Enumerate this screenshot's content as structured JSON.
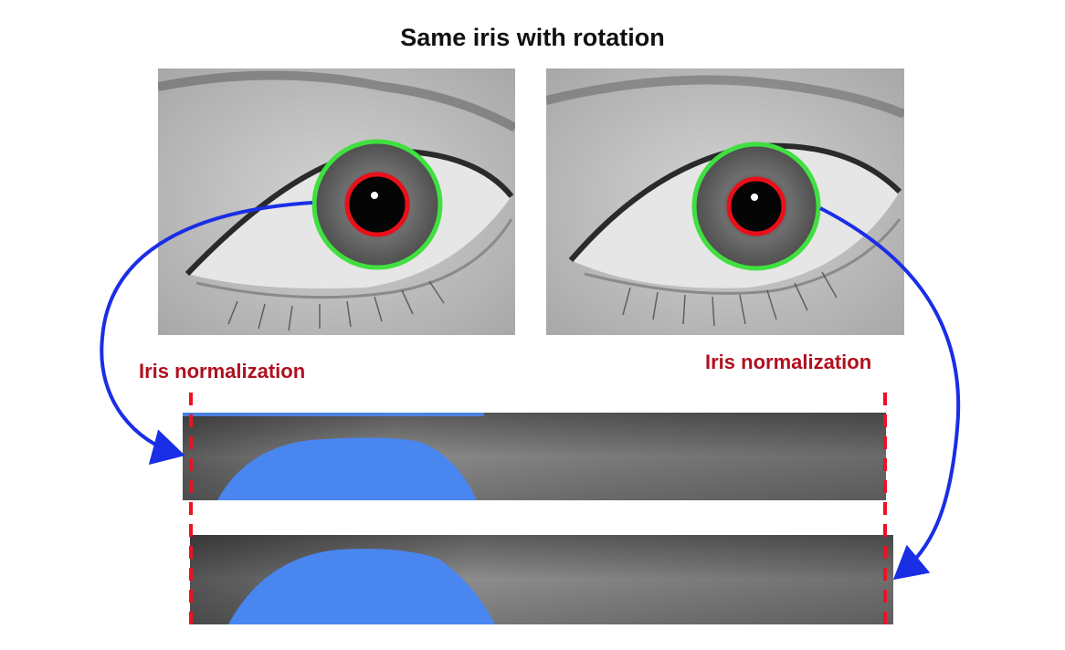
{
  "title": "Same iris with rotation",
  "left_label": "Iris normalization",
  "right_label": "Iris normalization",
  "colors": {
    "title": "#111111",
    "label": "#b01020",
    "arrow": "#1a2ee6",
    "iris_boundary": "#3fe03f",
    "pupil_boundary": "#e8101a",
    "dashed_marker": "#ee1122",
    "occlusion_mask": "#4a86f0",
    "strip_gray": "#7a7a7a"
  },
  "icons": [
    "eye-photo",
    "iris-strip",
    "curved-arrow"
  ]
}
